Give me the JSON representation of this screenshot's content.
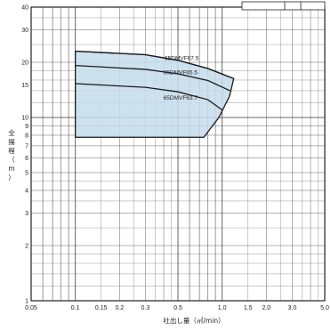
{
  "chart_data": {
    "type": "area",
    "title": "",
    "xlabel": "吐出し量（㎥/min）",
    "ylabel_chars": [
      "全",
      "揚",
      "程",
      "（",
      "m",
      "）"
    ],
    "x_scale": "log",
    "y_scale": "log",
    "xlim": [
      0.05,
      5.0
    ],
    "ylim": [
      1,
      40
    ],
    "x_ticks": [
      {
        "value": 0.05,
        "label": "0.05"
      },
      {
        "value": 0.1,
        "label": "0.1"
      },
      {
        "value": 0.15,
        "label": "0.15"
      },
      {
        "value": 0.2,
        "label": "0.2"
      },
      {
        "value": 0.3,
        "label": "0.3"
      },
      {
        "value": 0.5,
        "label": "0.5"
      },
      {
        "value": 1.0,
        "label": "1.0"
      },
      {
        "value": 1.5,
        "label": "1.5"
      },
      {
        "value": 2.0,
        "label": "2.0"
      },
      {
        "value": 3.0,
        "label": "3.0"
      },
      {
        "value": 5.0,
        "label": "5.0"
      }
    ],
    "y_ticks": [
      {
        "value": 1,
        "label": "1"
      },
      {
        "value": 2,
        "label": "2"
      },
      {
        "value": 3,
        "label": "3"
      },
      {
        "value": 4,
        "label": "4"
      },
      {
        "value": 5,
        "label": "5"
      },
      {
        "value": 6,
        "label": "6"
      },
      {
        "value": 7,
        "label": "7"
      },
      {
        "value": 8,
        "label": "8"
      },
      {
        "value": 9,
        "label": "9"
      },
      {
        "value": 10,
        "label": "10"
      },
      {
        "value": 15,
        "label": "15"
      },
      {
        "value": 20,
        "label": "20"
      },
      {
        "value": 30,
        "label": "30"
      },
      {
        "value": 40,
        "label": "40"
      }
    ],
    "grid": true,
    "operating_region": {
      "fill_color": "#c6dcec",
      "points": [
        [
          0.1,
          7.8
        ],
        [
          0.1,
          23.0
        ],
        [
          0.3,
          22.0
        ],
        [
          0.5,
          20.5
        ],
        [
          0.8,
          18.5
        ],
        [
          1.2,
          16.3
        ],
        [
          1.12,
          13.0
        ],
        [
          0.95,
          10.0
        ],
        [
          0.75,
          7.8
        ]
      ]
    },
    "series": [
      {
        "name": "65DMVF67.5",
        "x": [
          0.1,
          0.3,
          0.5,
          0.8,
          1.2
        ],
        "y": [
          23.0,
          22.0,
          20.5,
          18.5,
          16.3
        ]
      },
      {
        "name": "65DMVF65.5",
        "x": [
          0.1,
          0.3,
          0.5,
          0.8,
          1.13
        ],
        "y": [
          19.2,
          18.3,
          17.3,
          15.9,
          14.0
        ]
      },
      {
        "name": "65DMVF63.7",
        "x": [
          0.1,
          0.3,
          0.5,
          0.8,
          1.0
        ],
        "y": [
          15.3,
          14.6,
          13.8,
          12.5,
          11.0
        ]
      }
    ],
    "series_label_positions": [
      {
        "name": "65DMVF67.5",
        "x": 0.53,
        "y": 21.0
      },
      {
        "name": "65DMVF65.5",
        "x": 0.52,
        "y": 17.6
      },
      {
        "name": "65DMVF63.7",
        "x": 0.52,
        "y": 12.8
      }
    ],
    "colors": {
      "grid": "#555555",
      "frame": "#222222",
      "curve": "#1a1a1a",
      "fill": "#c6dcec"
    }
  }
}
